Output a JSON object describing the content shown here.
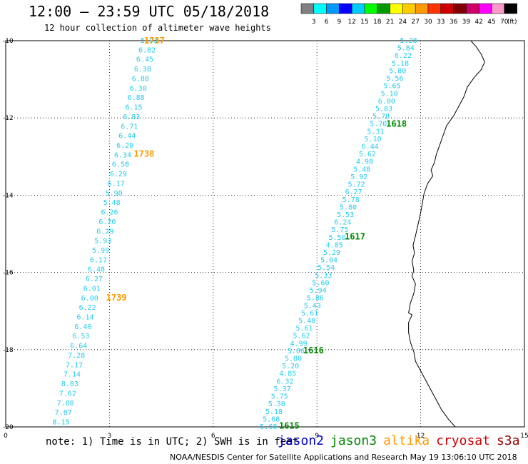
{
  "header": {
    "title": "12:00 – 23:59 UTC 05/18/2018",
    "subtitle": "12 hour collection of altimeter wave heights"
  },
  "colorbar": {
    "labels": [
      "3",
      "6",
      "9",
      "12",
      "15",
      "18",
      "21",
      "24",
      "27",
      "30",
      "33",
      "36",
      "39",
      "42",
      "45",
      "70",
      "(ft)"
    ],
    "colors": [
      "#808080",
      "#00ffff",
      "#0099ff",
      "#0000ff",
      "#00ccff",
      "#00ff00",
      "#009900",
      "#ffff00",
      "#ffcc00",
      "#ff9900",
      "#ff3300",
      "#cc0000",
      "#800000",
      "#cc0066",
      "#ff00ff",
      "#ff99cc",
      "#000000"
    ]
  },
  "axes": {
    "x_ticks": [
      "0",
      "3",
      "6",
      "9",
      "12",
      "15"
    ],
    "y_ticks": [
      "-10",
      "-12",
      "-14",
      "-16",
      "-18",
      "-20"
    ],
    "x_range": [
      0,
      15
    ],
    "y_range": [
      -20,
      -10
    ]
  },
  "tracks": [
    {
      "satellite": "altika",
      "color": "#ff9900",
      "pass_labels": [
        {
          "text": "1737",
          "x": 4.3,
          "y": -10.0
        },
        {
          "text": "1738",
          "x": 4.0,
          "y": -12.93
        },
        {
          "text": "1739",
          "x": 3.2,
          "y": -16.65
        }
      ],
      "values": [
        "5.93",
        "6.82",
        "6.45",
        "6.38",
        "6.88",
        "6.30",
        "6.88",
        "6.15",
        "6.83",
        "6.71",
        "6.44",
        "6.20",
        "6.34",
        "6.58",
        "6.29",
        "6.17",
        "5.90",
        "5.48",
        "6.26",
        "6.20",
        "6.29",
        "5.93",
        "5.99",
        "6.17",
        "6.48",
        "6.27",
        "6.01",
        "6.00",
        "6.22",
        "6.14",
        "6.40",
        "6.53",
        "6.64",
        "7.28",
        "7.17",
        "7.14",
        "8.03",
        "7.62",
        "7.08",
        "7.87",
        "8.15"
      ],
      "start": [
        4.15,
        -10.0
      ],
      "end": [
        1.6,
        -19.88
      ]
    },
    {
      "satellite": "jason3",
      "color": "#008800",
      "pass_labels": [
        {
          "text": "1618",
          "x": 11.3,
          "y": -12.15
        },
        {
          "text": "1617",
          "x": 10.1,
          "y": -15.07
        },
        {
          "text": "1616",
          "x": 8.9,
          "y": -18.02
        },
        {
          "text": "1615",
          "x": 8.2,
          "y": -19.97
        }
      ],
      "values": [
        "5.28",
        "5.84",
        "6.22",
        "5.18",
        "5.80",
        "5.56",
        "5.65",
        "5.10",
        "6.00",
        "5.83",
        "5.78",
        "5.70",
        "5.31",
        "5.10",
        "6.44",
        "5.62",
        "4.98",
        "5.48",
        "5.92",
        "5.72",
        "6.27",
        "5.78",
        "5.80",
        "5.53",
        "6.24",
        "5.75",
        "5.50",
        "4.85",
        "5.29",
        "5.04",
        "5.54",
        "5.33",
        "5.60",
        "5.94",
        "5.86",
        "5.43",
        "5.61",
        "5.48",
        "5.61",
        "5.62",
        "4.99",
        "5.06",
        "5.80",
        "5.20",
        "4.85",
        "6.32",
        "5.37",
        "5.75",
        "5.30",
        "5.18",
        "5.68",
        "5.68"
      ],
      "start": [
        11.65,
        -10.0
      ],
      "end": [
        7.6,
        -20.0
      ]
    }
  ],
  "coastline_points": [
    [
      13.45,
      -10.0
    ],
    [
      13.6,
      -10.15
    ],
    [
      13.75,
      -10.35
    ],
    [
      13.85,
      -10.55
    ],
    [
      13.75,
      -10.75
    ],
    [
      13.55,
      -10.95
    ],
    [
      13.35,
      -11.2
    ],
    [
      13.25,
      -11.45
    ],
    [
      13.1,
      -11.7
    ],
    [
      12.95,
      -11.95
    ],
    [
      12.75,
      -12.2
    ],
    [
      12.65,
      -12.45
    ],
    [
      12.55,
      -12.7
    ],
    [
      12.45,
      -12.95
    ],
    [
      12.4,
      -13.15
    ],
    [
      12.3,
      -13.35
    ],
    [
      12.35,
      -13.5
    ],
    [
      12.2,
      -13.7
    ],
    [
      12.1,
      -13.95
    ],
    [
      12.05,
      -14.2
    ],
    [
      12.0,
      -14.45
    ],
    [
      11.95,
      -14.65
    ],
    [
      11.9,
      -14.85
    ],
    [
      11.85,
      -15.05
    ],
    [
      11.78,
      -15.3
    ],
    [
      11.82,
      -15.5
    ],
    [
      11.75,
      -15.7
    ],
    [
      11.8,
      -15.95
    ],
    [
      11.75,
      -16.1
    ],
    [
      11.85,
      -16.3
    ],
    [
      11.8,
      -16.55
    ],
    [
      11.7,
      -16.8
    ],
    [
      11.65,
      -17.05
    ],
    [
      11.75,
      -17.1
    ],
    [
      11.65,
      -17.3
    ],
    [
      11.65,
      -17.55
    ],
    [
      11.7,
      -17.8
    ],
    [
      11.8,
      -18.05
    ],
    [
      11.85,
      -18.3
    ],
    [
      12.0,
      -18.55
    ],
    [
      12.15,
      -18.8
    ],
    [
      12.3,
      -19.05
    ],
    [
      12.45,
      -19.3
    ],
    [
      12.6,
      -19.55
    ],
    [
      12.8,
      -19.8
    ],
    [
      13.0,
      -20.0
    ]
  ],
  "legend_note": "note: 1) Time is in UTC; 2) SWH is in feet",
  "satellites": [
    {
      "name": "jason2",
      "color": "#0000cc"
    },
    {
      "name": "jason3",
      "color": "#008800"
    },
    {
      "name": "altika",
      "color": "#ff9900"
    },
    {
      "name": "cryosat",
      "color": "#cc0000"
    },
    {
      "name": "s3a",
      "color": "#990000"
    }
  ],
  "credit": "NOAA/NESDIS Center for Satellite Applications and Research    May 19 13:06:10 UTC 2018"
}
